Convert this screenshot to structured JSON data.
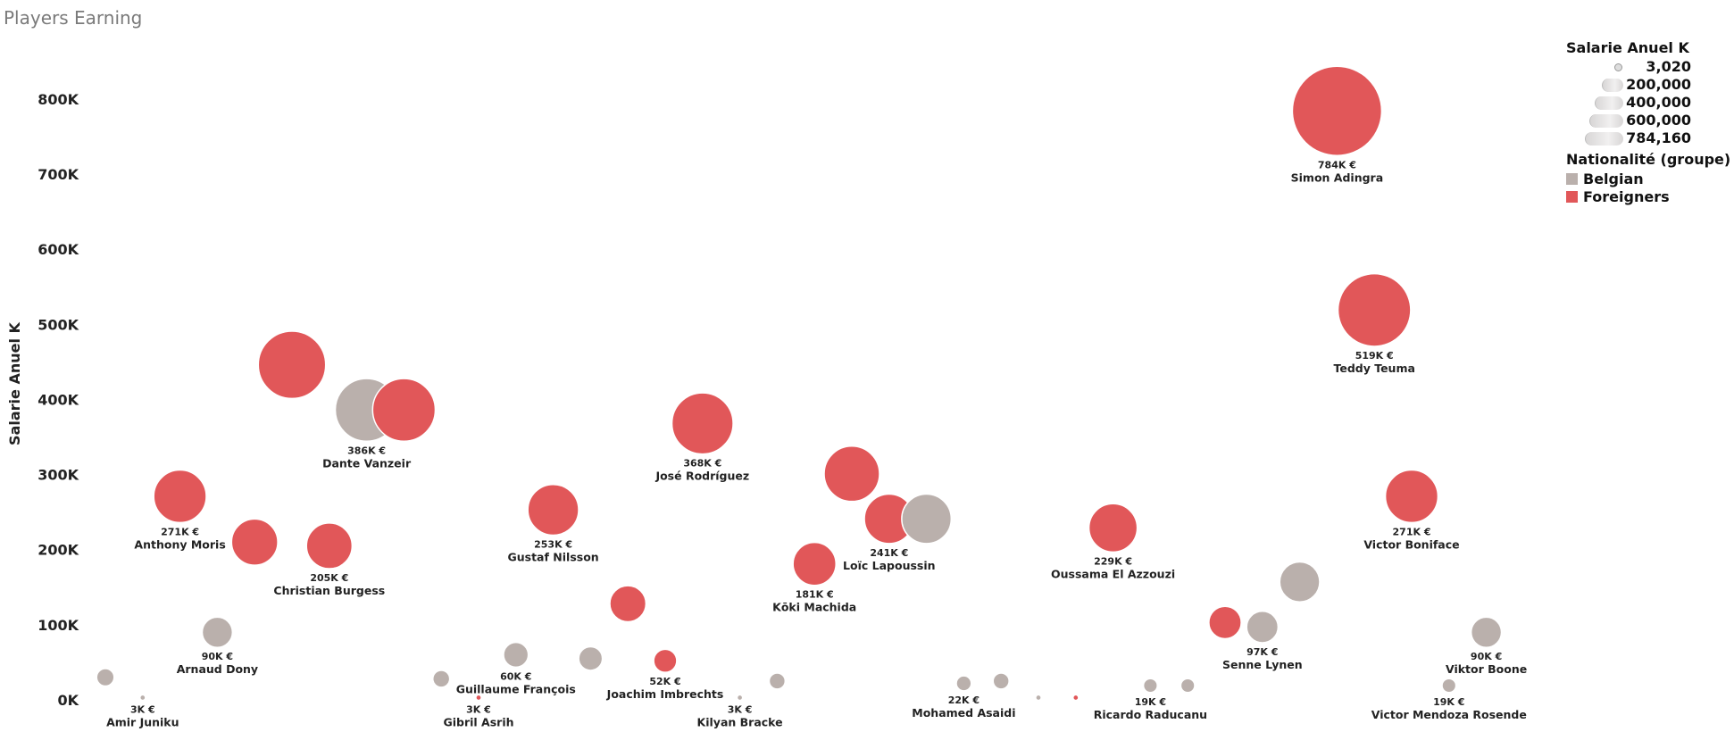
{
  "page": {
    "title": "Players Earning"
  },
  "chart_data": {
    "type": "scatter",
    "title": "Players Earning",
    "ylabel": "Salarie Anuel K",
    "xlabel": "",
    "ylim": [
      0,
      880000
    ],
    "y_ticks": [
      {
        "value": 0,
        "label": "0K"
      },
      {
        "value": 100000,
        "label": "100K"
      },
      {
        "value": 200000,
        "label": "200K"
      },
      {
        "value": 300000,
        "label": "300K"
      },
      {
        "value": 400000,
        "label": "400K"
      },
      {
        "value": 500000,
        "label": "500K"
      },
      {
        "value": 600000,
        "label": "600K"
      },
      {
        "value": 700000,
        "label": "700K"
      },
      {
        "value": 800000,
        "label": "800K"
      }
    ],
    "size_legend": {
      "title": "Salarie Anuel K",
      "entries": [
        {
          "value": 3020,
          "label": "3,020"
        },
        {
          "value": 200000,
          "label": "200,000"
        },
        {
          "value": 400000,
          "label": "400,000"
        },
        {
          "value": 600000,
          "label": "600,000"
        },
        {
          "value": 784160,
          "label": "784,160"
        }
      ]
    },
    "color_legend": {
      "title": "Nationalité (groupe)",
      "entries": [
        {
          "name": "Belgian",
          "color": "#bab0ac"
        },
        {
          "name": "Foreigners",
          "color": "#e15759"
        }
      ]
    },
    "legend_position": "top-right",
    "points": [
      {
        "order": 1,
        "group": "Belgian",
        "salary": 30000
      },
      {
        "order": 2,
        "group": "Belgian",
        "salary": 3000,
        "value_label": "3K €",
        "name": "Amir Juniku"
      },
      {
        "order": 3,
        "group": "Foreigners",
        "salary": 271000,
        "value_label": "271K €",
        "name": "Anthony Moris"
      },
      {
        "order": 4,
        "group": "Belgian",
        "salary": 90000,
        "value_label": "90K €",
        "name": "Arnaud Dony"
      },
      {
        "order": 5,
        "group": "Foreigners",
        "salary": 210000
      },
      {
        "order": 6,
        "group": "Foreigners",
        "salary": 446000
      },
      {
        "order": 7,
        "group": "Foreigners",
        "salary": 205000,
        "value_label": "205K €",
        "name": "Christian Burgess"
      },
      {
        "order": 8,
        "group": "Belgian",
        "salary": 386000,
        "value_label": "386K €",
        "name": "Dante Vanzeir"
      },
      {
        "order": 9,
        "group": "Foreigners",
        "salary": 386000
      },
      {
        "order": 10,
        "group": "Belgian",
        "salary": 28000
      },
      {
        "order": 11,
        "group": "Foreigners",
        "salary": 3000,
        "value_label": "3K €",
        "name": "Gibril Asrih"
      },
      {
        "order": 12,
        "group": "Belgian",
        "salary": 60000,
        "value_label": "60K €",
        "name": "Guillaume François"
      },
      {
        "order": 13,
        "group": "Foreigners",
        "salary": 253000,
        "value_label": "253K €",
        "name": "Gustaf Nilsson"
      },
      {
        "order": 14,
        "group": "Belgian",
        "salary": 55000
      },
      {
        "order": 15,
        "group": "Foreigners",
        "salary": 128000
      },
      {
        "order": 16,
        "group": "Foreigners",
        "salary": 52000,
        "value_label": "52K €",
        "name": "Joachim Imbrechts"
      },
      {
        "order": 17,
        "group": "Foreigners",
        "salary": 368000,
        "value_label": "368K €",
        "name": "José Rodríguez"
      },
      {
        "order": 18,
        "group": "Belgian",
        "salary": 3000,
        "value_label": "3K €",
        "name": "Kilyan Bracke"
      },
      {
        "order": 19,
        "group": "Belgian",
        "salary": 25000
      },
      {
        "order": 20,
        "group": "Foreigners",
        "salary": 181000,
        "value_label": "181K €",
        "name": "Kōki Machida"
      },
      {
        "order": 21,
        "group": "Foreigners",
        "salary": 301000
      },
      {
        "order": 22,
        "group": "Foreigners",
        "salary": 241000,
        "value_label": "241K €",
        "name": "Loïc Lapoussin"
      },
      {
        "order": 23,
        "group": "Belgian",
        "salary": 241000
      },
      {
        "order": 24,
        "group": "Belgian",
        "salary": 22000,
        "value_label": "22K €",
        "name": "Mohamed Asaidi"
      },
      {
        "order": 25,
        "group": "Belgian",
        "salary": 25000
      },
      {
        "order": 26,
        "group": "Belgian",
        "salary": 3000
      },
      {
        "order": 27,
        "group": "Foreigners",
        "salary": 3000
      },
      {
        "order": 28,
        "group": "Foreigners",
        "salary": 229000,
        "value_label": "229K €",
        "name": "Oussama El Azzouzi"
      },
      {
        "order": 29,
        "group": "Belgian",
        "salary": 19000,
        "value_label": "19K €",
        "name": "Ricardo Raducanu"
      },
      {
        "order": 30,
        "group": "Belgian",
        "salary": 19000
      },
      {
        "order": 31,
        "group": "Foreigners",
        "salary": 103000
      },
      {
        "order": 32,
        "group": "Belgian",
        "salary": 97000,
        "value_label": "97K €",
        "name": "Senne Lynen"
      },
      {
        "order": 33,
        "group": "Belgian",
        "salary": 157000
      },
      {
        "order": 34,
        "group": "Foreigners",
        "salary": 784000,
        "value_label": "784K €",
        "name": "Simon Adingra"
      },
      {
        "order": 35,
        "group": "Foreigners",
        "salary": 519000,
        "value_label": "519K €",
        "name": "Teddy Teuma"
      },
      {
        "order": 36,
        "group": "Foreigners",
        "salary": 271000,
        "value_label": "271K €",
        "name": "Victor Boniface"
      },
      {
        "order": 37,
        "group": "Belgian",
        "salary": 19000,
        "value_label": "19K €",
        "name": "Victor Mendoza Rosende"
      },
      {
        "order": 38,
        "group": "Belgian",
        "salary": 90000,
        "value_label": "90K €",
        "name": "Viktor Boone"
      }
    ]
  }
}
